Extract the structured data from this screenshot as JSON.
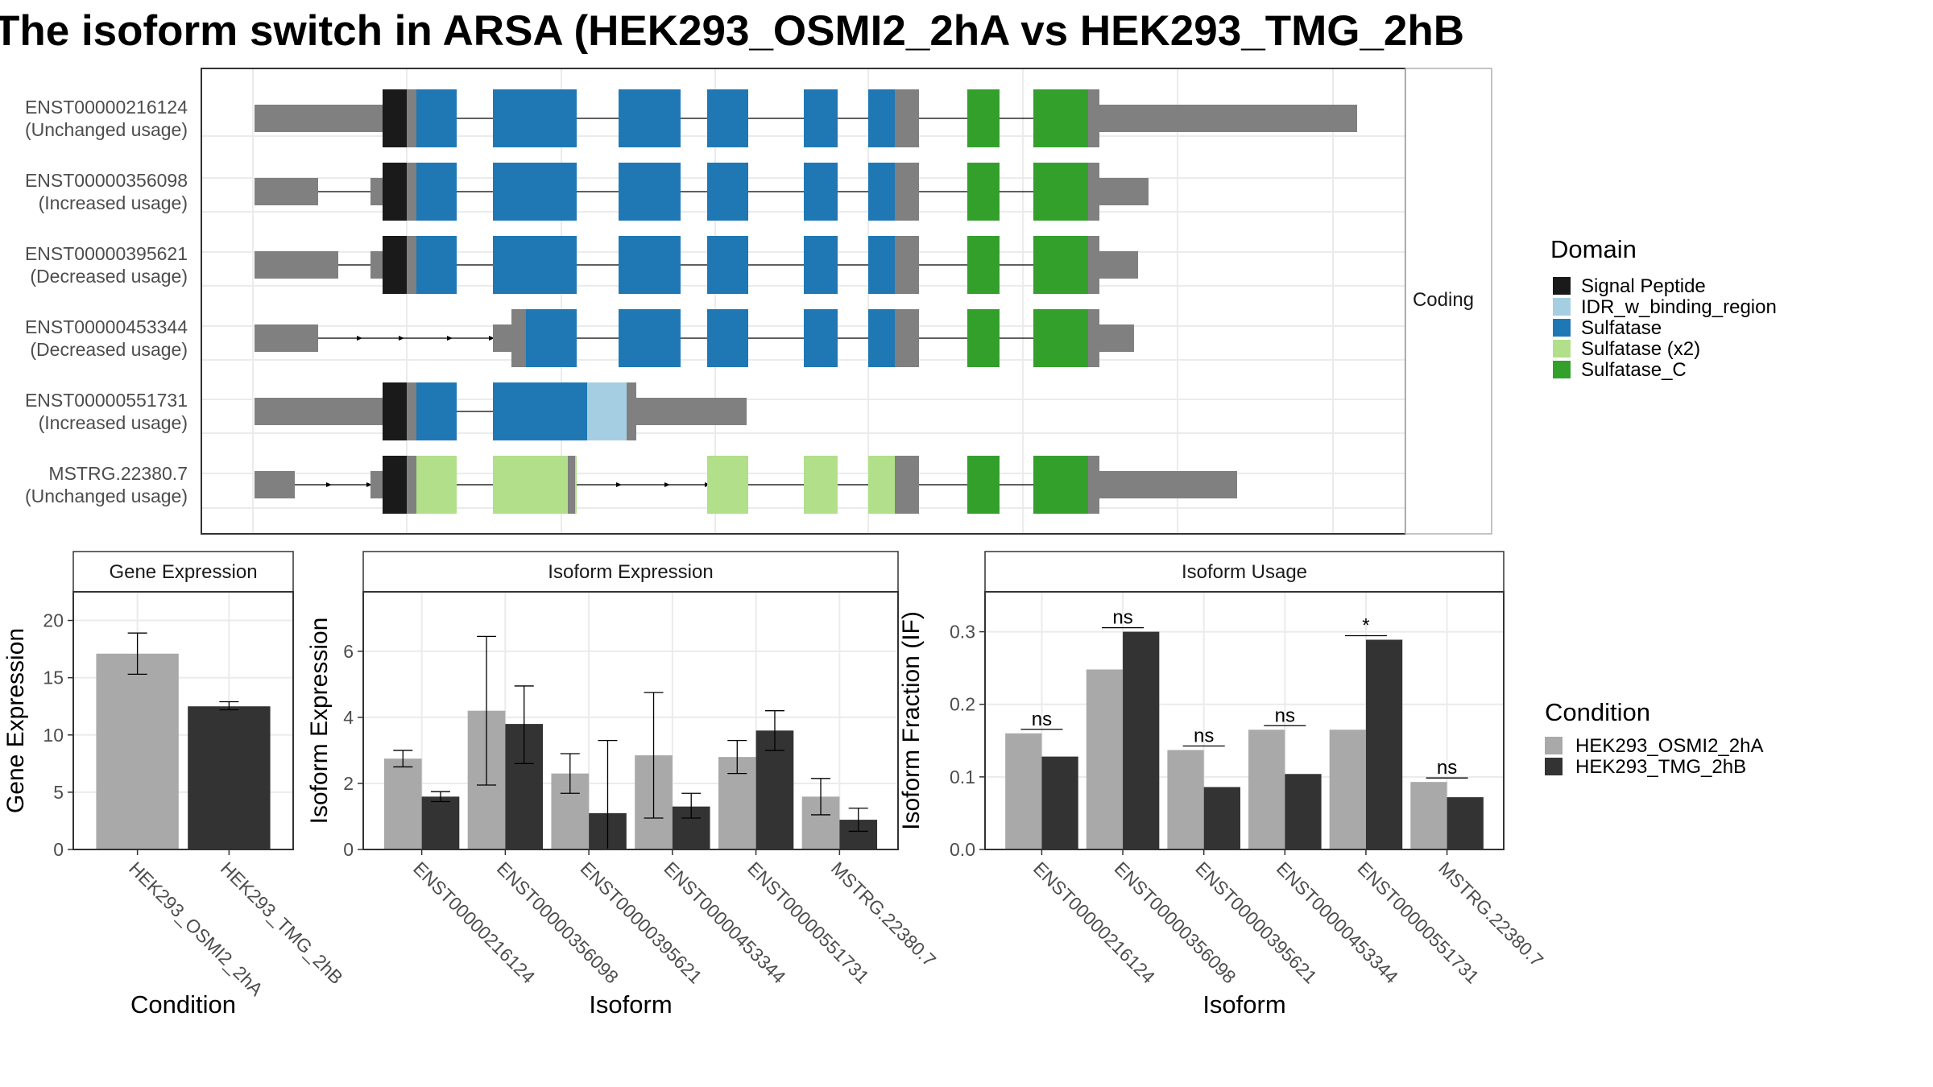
{
  "title": "The isoform switch in ARSA (HEK293_OSMI2_2hA vs HEK293_TMG_2hB",
  "colors": {
    "signal_peptide": "#1a1a1a",
    "idr": "#a6cee3",
    "sulfatase": "#1f78b4",
    "sulfatase_x2": "#b2df8a",
    "sulfatase_c": "#33a02c",
    "utr": "#808080",
    "cond_a": "#a9a9a9",
    "cond_b": "#333333",
    "panel_border": "#333333",
    "strip_border": "#b0b0b0",
    "grid": "#ebebeb"
  },
  "structure": {
    "facet_label": "Coding",
    "transcripts": [
      {
        "id": "ENST00000216124",
        "usage": "(Unchanged usage)"
      },
      {
        "id": "ENST00000356098",
        "usage": "(Increased usage)"
      },
      {
        "id": "ENST00000395621",
        "usage": "(Decreased usage)"
      },
      {
        "id": "ENST00000453344",
        "usage": "(Decreased usage)"
      },
      {
        "id": "ENST00000551731",
        "usage": "(Increased usage)"
      },
      {
        "id": "MSTRG.22380.7",
        "usage": "(Unchanged usage)"
      }
    ],
    "domain_legend": {
      "title": "Domain",
      "items": [
        "Signal Peptide",
        "IDR_w_binding_region",
        "Sulfatase",
        "Sulfatase (x2)",
        "Sulfatase_C"
      ],
      "color_keys": [
        "signal_peptide",
        "idr",
        "sulfatase",
        "sulfatase_x2",
        "sulfatase_c"
      ]
    }
  },
  "condition_legend": {
    "title": "Condition",
    "items": [
      "HEK293_OSMI2_2hA",
      "HEK293_TMG_2hB"
    ]
  },
  "chart_data": [
    {
      "type": "bar",
      "strip": "Gene Expression",
      "xlabel": "Condition",
      "ylabel": "Gene Expression",
      "ylim": [
        0,
        22.5
      ],
      "yticks": [
        0,
        5,
        10,
        15,
        20
      ],
      "categories": [
        "HEK293_OSMI2_2hA",
        "HEK293_TMG_2hB"
      ],
      "values": [
        17.1,
        12.5
      ],
      "errors": [
        [
          15.3,
          18.9
        ],
        [
          12.2,
          12.9
        ]
      ],
      "grid": true
    },
    {
      "type": "bar",
      "strip": "Isoform Expression",
      "xlabel": "Isoform",
      "ylabel": "Isoform Expression",
      "ylim": [
        0,
        7.8
      ],
      "yticks": [
        0,
        2,
        4,
        6
      ],
      "categories": [
        "ENST00000216124",
        "ENST00000356098",
        "ENST00000395621",
        "ENST00000453344",
        "ENST00000551731",
        "MSTRG.22380.7"
      ],
      "series": [
        {
          "name": "HEK293_OSMI2_2hA",
          "values": [
            2.75,
            4.2,
            2.3,
            2.85,
            2.8,
            1.6
          ],
          "errors": [
            [
              2.5,
              3.0
            ],
            [
              1.95,
              6.45
            ],
            [
              1.7,
              2.9
            ],
            [
              0.95,
              4.75
            ],
            [
              2.3,
              3.3
            ],
            [
              1.05,
              2.15
            ]
          ]
        },
        {
          "name": "HEK293_TMG_2hB",
          "values": [
            1.6,
            3.8,
            1.1,
            1.3,
            3.6,
            0.9
          ],
          "errors": [
            [
              1.45,
              1.75
            ],
            [
              2.6,
              4.95
            ],
            [
              0.0,
              3.3
            ],
            [
              0.95,
              1.7
            ],
            [
              3.0,
              4.2
            ],
            [
              0.55,
              1.25
            ]
          ]
        }
      ],
      "grid": true
    },
    {
      "type": "bar",
      "strip": "Isoform Usage",
      "xlabel": "Isoform",
      "ylabel": "Isoform Fraction (IF)",
      "ylim": [
        0,
        0.355
      ],
      "yticks": [
        0.0,
        0.1,
        0.2,
        0.3
      ],
      "ytick_labels": [
        "0.0",
        "0.1",
        "0.2",
        "0.3"
      ],
      "categories": [
        "ENST00000216124",
        "ENST00000356098",
        "ENST00000395621",
        "ENST00000453344",
        "ENST00000551731",
        "MSTRG.22380.7"
      ],
      "series": [
        {
          "name": "HEK293_OSMI2_2hA",
          "values": [
            0.16,
            0.248,
            0.137,
            0.165,
            0.165,
            0.093
          ]
        },
        {
          "name": "HEK293_TMG_2hB",
          "values": [
            0.128,
            0.3,
            0.086,
            0.104,
            0.289,
            0.072
          ]
        }
      ],
      "significance": [
        "ns",
        "ns",
        "ns",
        "ns",
        "*",
        "ns"
      ],
      "grid": true
    }
  ]
}
